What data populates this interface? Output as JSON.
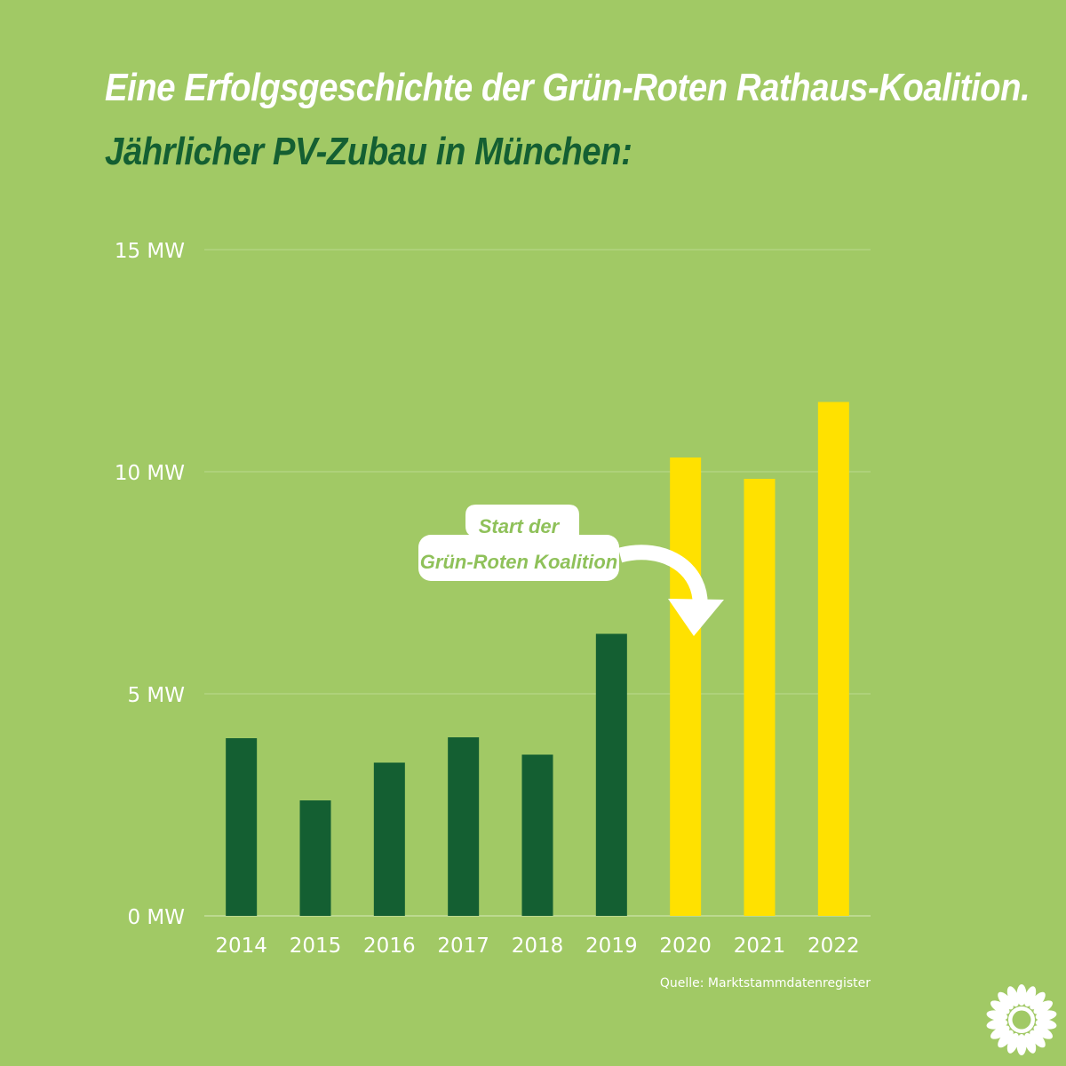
{
  "header": {
    "title": "Eine Erfolgsgeschichte der Grün-Roten Rathaus-Koalition.",
    "subtitle": "Jährlicher PV-Zubau in München:"
  },
  "footer": {
    "source": "Quelle: Marktstammdatenregister"
  },
  "colors": {
    "background": "#a1c965",
    "before_coalition": "#145f32",
    "coalition": "#ffe100",
    "text": "#ffffff",
    "gridline": "#bcd98f"
  },
  "chart_data": {
    "type": "bar",
    "categories": [
      "2014",
      "2015",
      "2016",
      "2017",
      "2018",
      "2019",
      "2020",
      "2021",
      "2022"
    ],
    "values": [
      4.0,
      2.6,
      3.45,
      4.02,
      3.63,
      6.35,
      10.32,
      9.84,
      11.57
    ],
    "highlighted_from": "2020",
    "ylim": [
      0,
      15
    ],
    "yticks": [
      {
        "value": 0,
        "label": "0 MW"
      },
      {
        "value": 5,
        "label": "5 MW"
      },
      {
        "value": 10,
        "label": "10 MW"
      },
      {
        "value": 15,
        "label": "15 MW"
      }
    ],
    "grid": true,
    "annotation": {
      "line1": "Start der",
      "line2": "Grün-Roten Koalition",
      "points_to": "2020"
    }
  }
}
